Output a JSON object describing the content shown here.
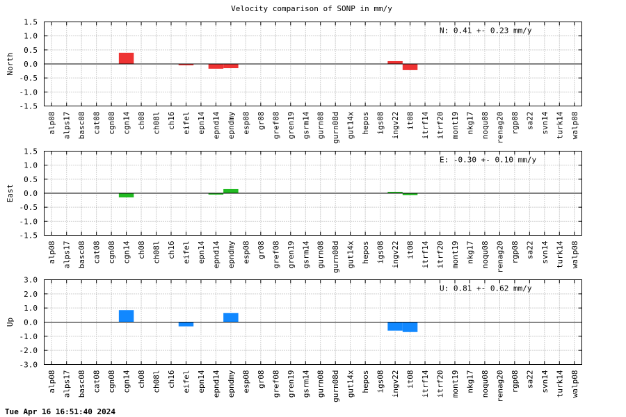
{
  "timestamp": "Tue Apr 16 16:51:40 2024",
  "chart_data": {
    "type": "bar",
    "title": "Velocity comparison of SONP in mm/y",
    "categories": [
      "alp08",
      "alps17",
      "basc08",
      "cat08",
      "cgn08",
      "cgn14",
      "ch08",
      "ch08l",
      "ch16",
      "eifel",
      "epn14",
      "epnd14",
      "epndmy",
      "esp08",
      "gr08",
      "gref08",
      "gren19",
      "gsrm14",
      "gurn08",
      "gurn08d",
      "gut14x",
      "hepos",
      "igs08",
      "ingv22",
      "it08",
      "itrf14",
      "itrf20",
      "mont19",
      "nkg17",
      "noqu08",
      "renag20",
      "rgp08",
      "sa22",
      "svn14",
      "turk14",
      "walp08"
    ],
    "grid": true,
    "panels": [
      {
        "ylabel": "North",
        "ylim": [
          -1.5,
          1.5
        ],
        "yticks": [
          -1.5,
          -1.0,
          -0.5,
          0.0,
          0.5,
          1.0,
          1.5
        ],
        "tick_labels": [
          "-1.5",
          "-1.0",
          "-0.5",
          "0.0",
          "0.5",
          "1.0",
          "1.5"
        ],
        "color": "#ee3333",
        "stat": "N:   0.41 +-  0.23 mm/y",
        "values": [
          0,
          0,
          0,
          0,
          0,
          0.4,
          0,
          0,
          0,
          -0.05,
          0,
          -0.17,
          -0.15,
          0,
          0,
          0,
          0,
          0,
          0,
          0,
          0,
          0,
          0,
          0.1,
          -0.22,
          0,
          0,
          0,
          0,
          0,
          0,
          0,
          0,
          0,
          0,
          0
        ]
      },
      {
        "ylabel": "East",
        "ylim": [
          -1.5,
          1.5
        ],
        "yticks": [
          -1.5,
          -1.0,
          -0.5,
          0.0,
          0.5,
          1.0,
          1.5
        ],
        "tick_labels": [
          "-1.5",
          "-1.0",
          "-0.5",
          "0.0",
          "0.5",
          "1.0",
          "1.5"
        ],
        "color": "#22bb22",
        "stat": "E:  -0.30 +-  0.10 mm/y",
        "values": [
          0,
          0,
          0,
          0,
          0,
          -0.15,
          0,
          0,
          0,
          0,
          0,
          -0.05,
          0.15,
          0,
          0,
          0,
          0,
          0,
          0,
          0,
          0,
          0,
          0,
          0.05,
          -0.07,
          0,
          0,
          0,
          0,
          0,
          0,
          0,
          0,
          0,
          0,
          0
        ]
      },
      {
        "ylabel": "Up",
        "ylim": [
          -3.0,
          3.0
        ],
        "yticks": [
          -3.0,
          -2.0,
          -1.0,
          0.0,
          1.0,
          2.0,
          3.0
        ],
        "tick_labels": [
          "-3.0",
          "-2.0",
          "-1.0",
          "0.0",
          "1.0",
          "2.0",
          "3.0"
        ],
        "color": "#1188ff",
        "stat": "U:   0.81 +-  0.62 mm/y",
        "values": [
          0,
          0,
          0,
          0,
          0,
          0.85,
          0,
          0,
          0,
          -0.3,
          0,
          0,
          0.65,
          0,
          0,
          0,
          0,
          0,
          0,
          0,
          0,
          0,
          0,
          -0.6,
          -0.7,
          0,
          0,
          0,
          0,
          0,
          0,
          0,
          0,
          0,
          0,
          0
        ]
      }
    ]
  }
}
